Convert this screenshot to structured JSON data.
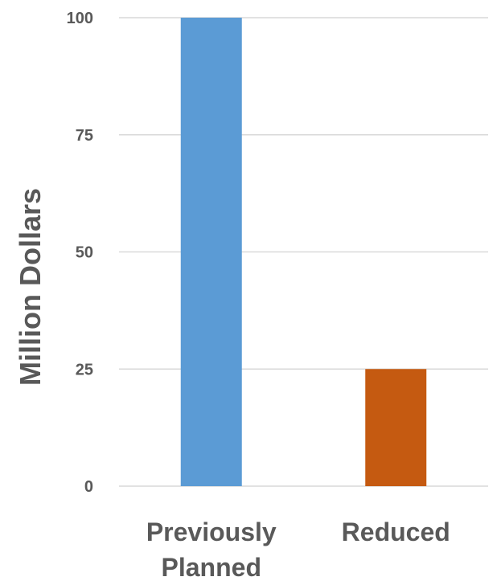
{
  "chart_data": {
    "type": "bar",
    "title": "",
    "xlabel": "",
    "ylabel": "Million Dollars",
    "categories": [
      "Previously Planned",
      "Reduced"
    ],
    "category_lines": [
      [
        "Previously",
        "Planned"
      ],
      [
        "Reduced"
      ]
    ],
    "values": [
      100,
      25
    ],
    "bar_colors": [
      "#5B9BD5",
      "#C55A11"
    ],
    "ylim": [
      0,
      100
    ],
    "yticks": [
      0,
      25,
      50,
      75,
      100
    ],
    "ytick_labels": [
      "0",
      "25",
      "50",
      "75",
      "100"
    ],
    "grid": true,
    "legend": "none"
  },
  "colors": {
    "gridline": "#D9D9D9",
    "text": "#595959",
    "background": "#FFFFFF"
  }
}
